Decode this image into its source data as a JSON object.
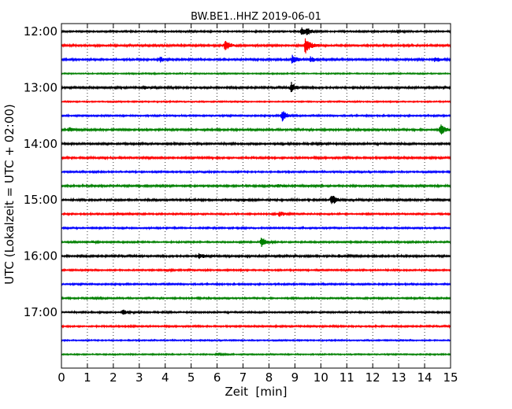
{
  "chart_data": {
    "type": "line",
    "title": "BW.BE1..HHZ 2019-06-01",
    "xlabel": "Zeit  [min]",
    "ylabel": "UTC (Lokalzeit = UTC + 02:00)",
    "xlim": [
      0,
      15
    ],
    "x_ticks": [
      "0",
      "1",
      "2",
      "3",
      "4",
      "5",
      "6",
      "7",
      "8",
      "9",
      "10",
      "11",
      "12",
      "13",
      "14",
      "15"
    ],
    "y_ticks": [
      "12:00",
      "13:00",
      "14:00",
      "15:00",
      "16:00",
      "17:00"
    ],
    "grid": "vertical-dotted",
    "trace_interval_minutes": 15,
    "start_time": "12:00",
    "colors": [
      "#000000",
      "#ff0000",
      "#0000ff",
      "#008000"
    ],
    "traces": [
      {
        "start": "12:00",
        "noise": 0.25,
        "events": [
          {
            "t": 9.25,
            "amp": 1.6
          },
          {
            "t": 9.45,
            "amp": 1.2
          },
          {
            "t": 12.8,
            "amp": 0.5
          }
        ]
      },
      {
        "start": "12:15",
        "noise": 0.3,
        "events": [
          {
            "t": 6.3,
            "amp": 2.0
          },
          {
            "t": 9.4,
            "amp": 3.8
          },
          {
            "t": 3.6,
            "amp": 0.4
          }
        ]
      },
      {
        "start": "12:30",
        "noise": 0.3,
        "events": [
          {
            "t": 3.8,
            "amp": 1.0
          },
          {
            "t": 8.9,
            "amp": 1.8
          },
          {
            "t": 9.6,
            "amp": 1.0
          },
          {
            "t": 14.4,
            "amp": 1.0
          }
        ]
      },
      {
        "start": "12:45",
        "noise": 0.2,
        "events": []
      },
      {
        "start": "13:00",
        "noise": 0.3,
        "events": [
          {
            "t": 8.85,
            "amp": 2.2
          },
          {
            "t": 3.2,
            "amp": 0.5
          }
        ]
      },
      {
        "start": "13:15",
        "noise": 0.2,
        "events": []
      },
      {
        "start": "13:30",
        "noise": 0.25,
        "events": [
          {
            "t": 8.5,
            "amp": 2.4
          }
        ]
      },
      {
        "start": "13:45",
        "noise": 0.3,
        "events": [
          {
            "t": 0.3,
            "amp": 0.8
          },
          {
            "t": 14.6,
            "amp": 2.2
          }
        ]
      },
      {
        "start": "14:00",
        "noise": 0.3,
        "events": [
          {
            "t": 10.0,
            "amp": 0.5
          }
        ]
      },
      {
        "start": "14:15",
        "noise": 0.3,
        "events": []
      },
      {
        "start": "14:30",
        "noise": 0.25,
        "events": []
      },
      {
        "start": "14:45",
        "noise": 0.3,
        "events": [
          {
            "t": 8.3,
            "amp": 0.6
          }
        ]
      },
      {
        "start": "15:00",
        "noise": 0.3,
        "events": [
          {
            "t": 10.4,
            "amp": 2.3
          },
          {
            "t": 7.0,
            "amp": 0.4
          }
        ]
      },
      {
        "start": "15:15",
        "noise": 0.25,
        "events": [
          {
            "t": 8.4,
            "amp": 1.0
          },
          {
            "t": 2.2,
            "amp": 0.5
          }
        ]
      },
      {
        "start": "15:30",
        "noise": 0.25,
        "events": []
      },
      {
        "start": "15:45",
        "noise": 0.25,
        "events": [
          {
            "t": 7.7,
            "amp": 2.0
          },
          {
            "t": 1.2,
            "amp": 0.4
          }
        ]
      },
      {
        "start": "16:00",
        "noise": 0.3,
        "events": [
          {
            "t": 5.3,
            "amp": 1.2
          },
          {
            "t": 10.7,
            "amp": 0.5
          }
        ]
      },
      {
        "start": "16:15",
        "noise": 0.25,
        "events": [
          {
            "t": 4.0,
            "amp": 0.4
          }
        ]
      },
      {
        "start": "16:30",
        "noise": 0.25,
        "events": []
      },
      {
        "start": "16:45",
        "noise": 0.25,
        "events": [
          {
            "t": 1.2,
            "amp": 0.4
          }
        ]
      },
      {
        "start": "17:00",
        "noise": 0.25,
        "events": [
          {
            "t": 2.35,
            "amp": 1.2
          }
        ]
      },
      {
        "start": "17:15",
        "noise": 0.25,
        "events": [
          {
            "t": 2.6,
            "amp": 0.4
          }
        ]
      },
      {
        "start": "17:30",
        "noise": 0.2,
        "events": []
      },
      {
        "start": "17:45",
        "noise": 0.2,
        "events": [
          {
            "t": 6.0,
            "amp": 0.5
          }
        ]
      }
    ]
  }
}
